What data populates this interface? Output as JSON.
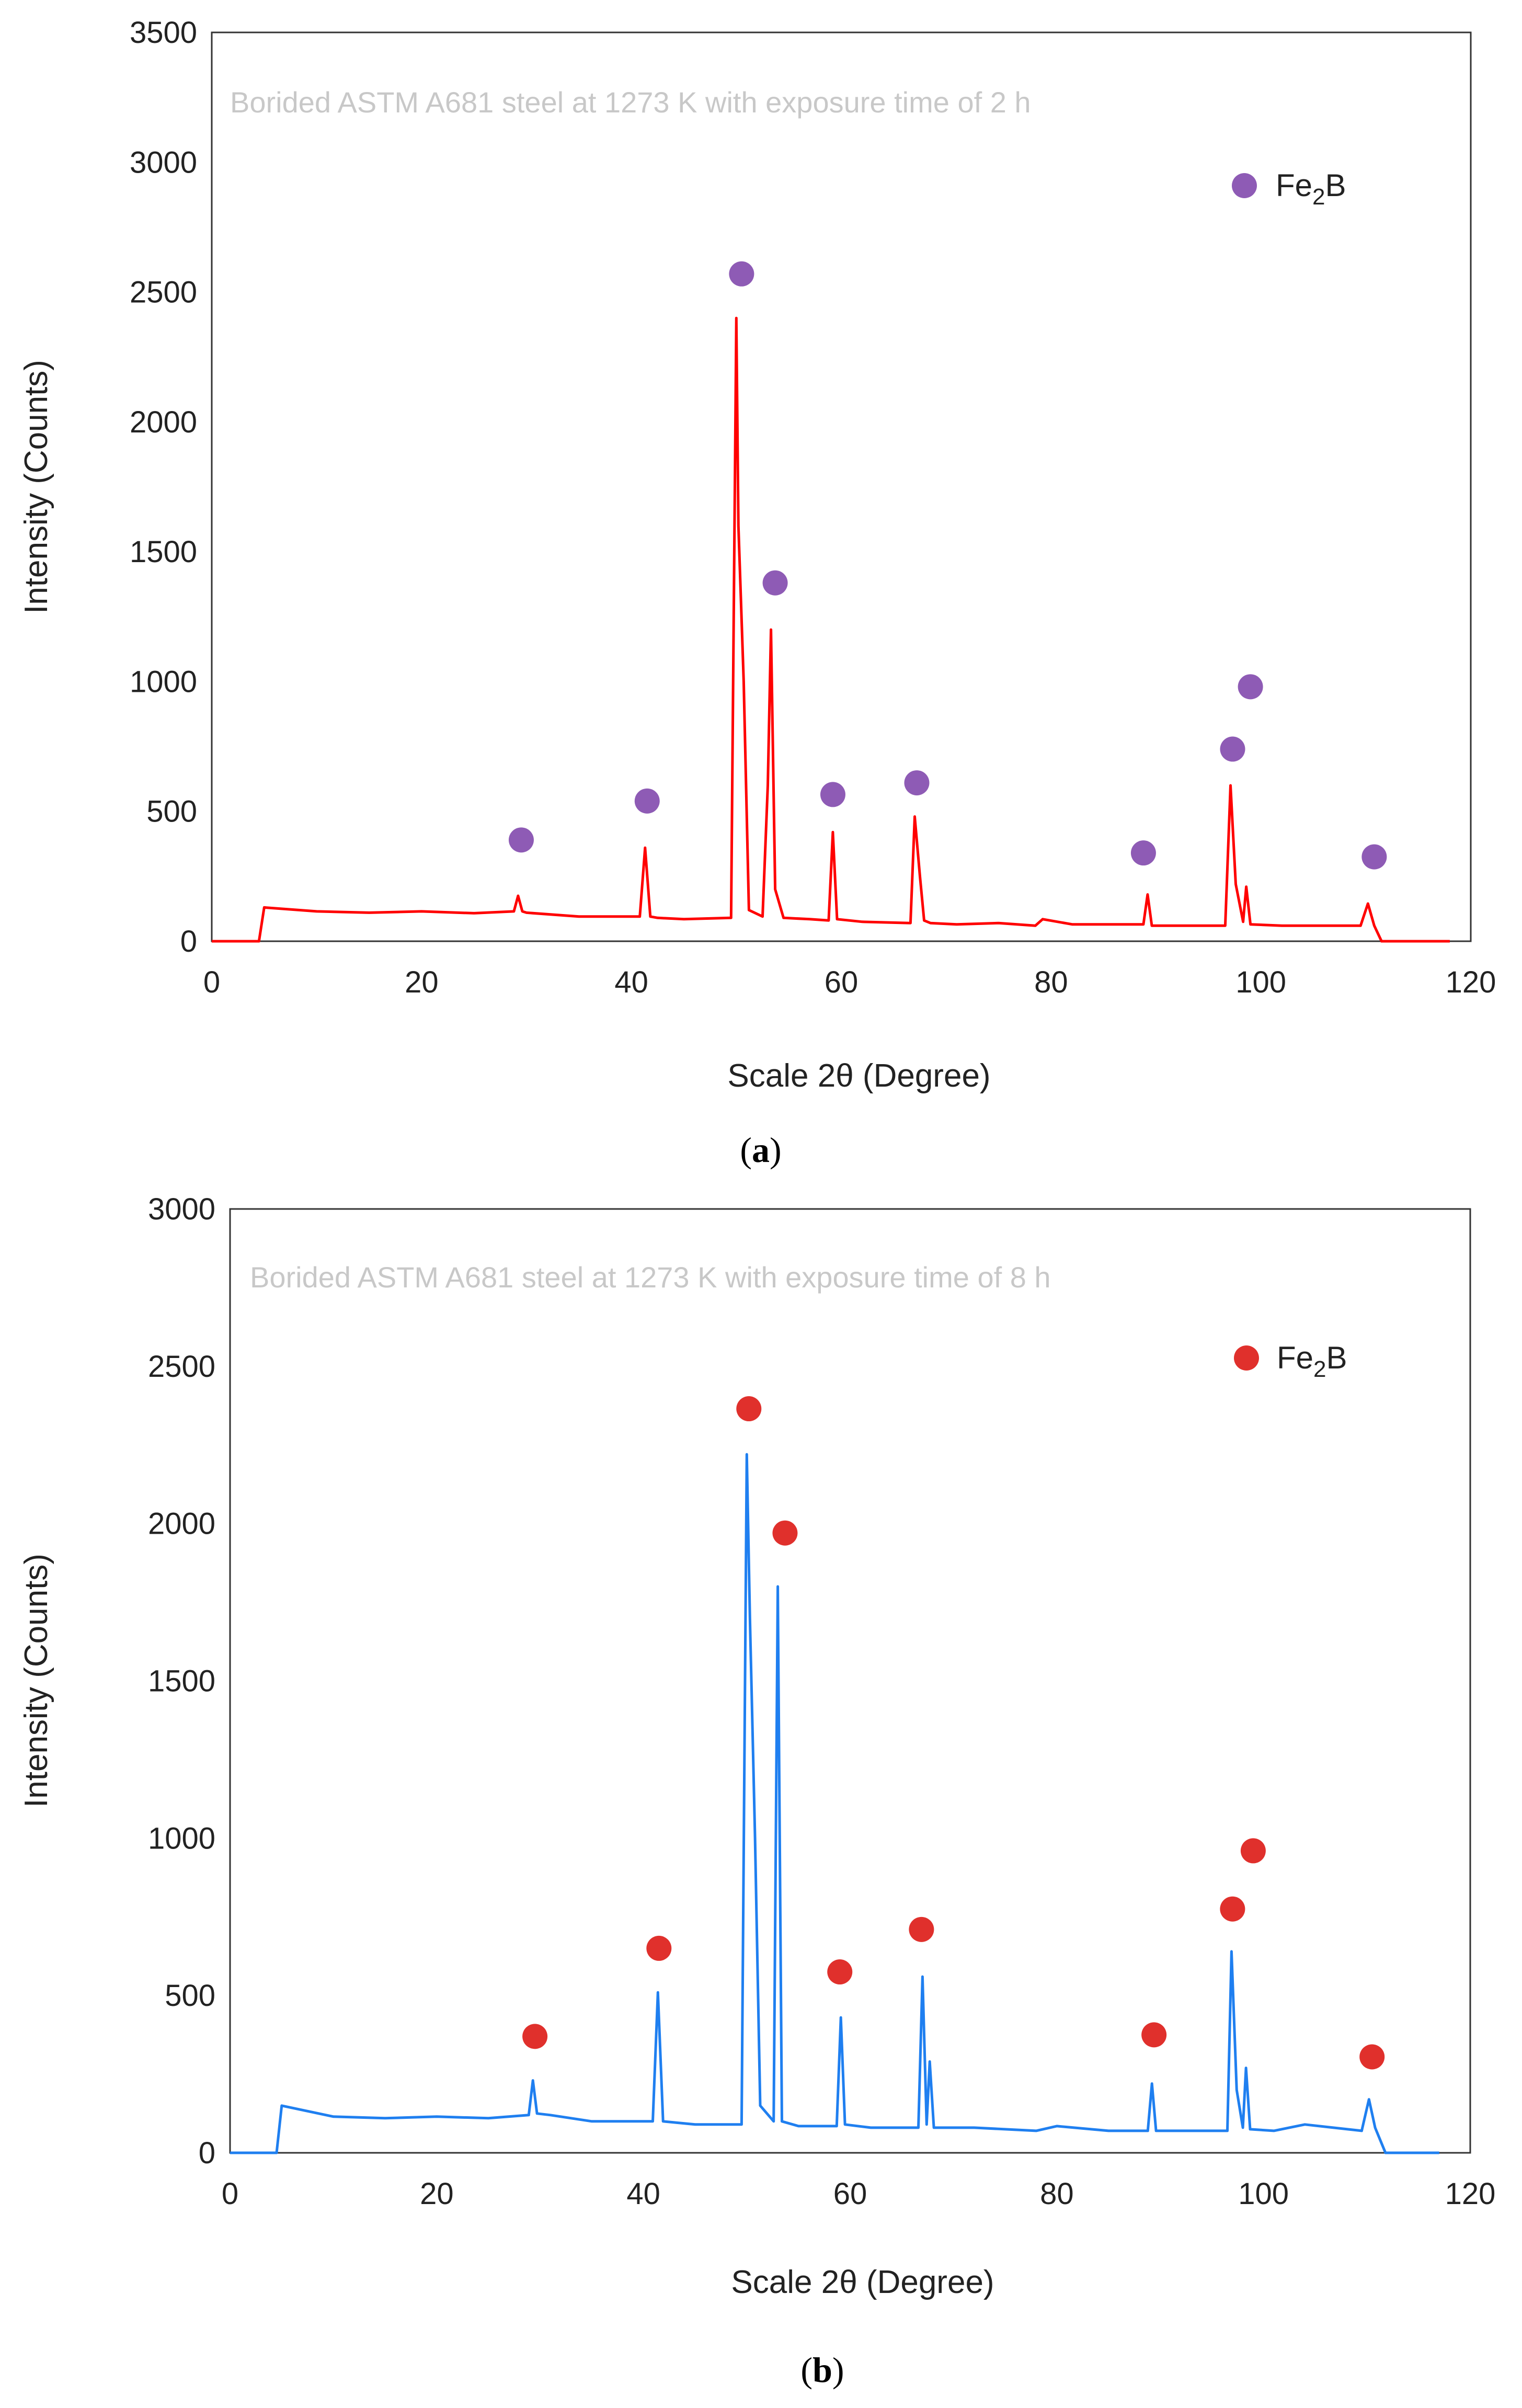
{
  "chart_data": [
    {
      "type": "line",
      "panel": "a",
      "caption_open": "(",
      "caption_letter": "a",
      "caption_close": ")",
      "title": "Borided ASTM A681 steel at 1273 K with exposure time of 2 h",
      "xlabel": "Scale 2θ (Degree)",
      "ylabel": "Intensity (Counts)",
      "xlim": [
        0,
        120
      ],
      "ylim": [
        0,
        3500
      ],
      "xticks": [
        0,
        20,
        40,
        60,
        80,
        100,
        120
      ],
      "yticks": [
        0,
        500,
        1000,
        1500,
        2000,
        2500,
        3000,
        3500
      ],
      "line_color": "#ff0000",
      "marker_color": "#8e5bb5",
      "legend": {
        "label_main": "Fe",
        "label_sub": "2",
        "label_tail": "B",
        "position": "top-right"
      },
      "series": [
        {
          "name": "XRD pattern",
          "x": [
            0,
            4.5,
            5,
            10,
            15,
            20,
            25,
            28.8,
            29.2,
            29.6,
            30,
            35,
            40.8,
            41.3,
            41.8,
            42.5,
            45,
            49.5,
            50.0,
            50.2,
            50.7,
            51.2,
            52.5,
            53.0,
            53.3,
            53.7,
            54.5,
            57,
            58.8,
            59.2,
            59.6,
            62,
            66.6,
            67.0,
            67.5,
            67.9,
            68.5,
            71,
            75,
            78.5,
            79.2,
            82,
            86,
            88.8,
            89.2,
            89.6,
            93,
            96.6,
            97.1,
            97.6,
            98.3,
            98.6,
            99.0,
            102,
            106,
            109.5,
            110.2,
            110.8,
            111.5,
            118
          ],
          "y": [
            0,
            0,
            130,
            115,
            110,
            115,
            108,
            115,
            175,
            115,
            110,
            95,
            95,
            360,
            95,
            90,
            85,
            90,
            2400,
            1600,
            1000,
            120,
            95,
            600,
            1200,
            200,
            90,
            85,
            80,
            420,
            85,
            75,
            70,
            480,
            250,
            80,
            70,
            65,
            70,
            60,
            85,
            65,
            65,
            65,
            180,
            60,
            60,
            60,
            600,
            220,
            75,
            210,
            65,
            60,
            60,
            60,
            145,
            60,
            0,
            0
          ]
        }
      ],
      "markers": [
        {
          "x": 29.5,
          "y": 390
        },
        {
          "x": 41.5,
          "y": 540
        },
        {
          "x": 50.5,
          "y": 2570
        },
        {
          "x": 53.7,
          "y": 1380
        },
        {
          "x": 59.2,
          "y": 565
        },
        {
          "x": 67.2,
          "y": 610
        },
        {
          "x": 88.8,
          "y": 340
        },
        {
          "x": 97.3,
          "y": 740
        },
        {
          "x": 99.0,
          "y": 980
        },
        {
          "x": 110.8,
          "y": 325
        }
      ]
    },
    {
      "type": "line",
      "panel": "b",
      "caption_open": "(",
      "caption_letter": "b",
      "caption_close": ")",
      "title": "Borided ASTM A681 steel at 1273 K with exposure time of 8 h",
      "xlabel": "Scale 2θ (Degree)",
      "ylabel": "Intensity (Counts)",
      "xlim": [
        0,
        120
      ],
      "ylim": [
        0,
        3000
      ],
      "xticks": [
        0,
        20,
        40,
        60,
        80,
        100,
        120
      ],
      "yticks": [
        0,
        500,
        1000,
        1500,
        2000,
        2500,
        3000
      ],
      "line_color": "#1f7ff0",
      "marker_color": "#e0302c",
      "legend": {
        "label_main": "Fe",
        "label_sub": "2",
        "label_tail": "B",
        "position": "top-right"
      },
      "series": [
        {
          "name": "XRD pattern",
          "x": [
            0,
            4.5,
            5,
            10,
            15,
            20,
            25,
            28.9,
            29.3,
            29.7,
            31,
            35,
            40.9,
            41.4,
            41.9,
            45,
            49.5,
            50.0,
            50.3,
            50.8,
            51.3,
            52.6,
            53.0,
            53.4,
            55,
            58.7,
            59.1,
            59.5,
            62,
            66.6,
            67.0,
            67.4,
            67.7,
            68.1,
            72,
            78,
            80,
            85,
            88.8,
            89.2,
            89.6,
            94,
            96.5,
            96.9,
            97.4,
            98.0,
            98.3,
            98.7,
            101,
            104,
            109.5,
            110.2,
            110.8,
            111.8,
            117
          ],
          "y": [
            0,
            0,
            150,
            115,
            110,
            115,
            110,
            120,
            230,
            125,
            120,
            100,
            100,
            510,
            100,
            90,
            90,
            2220,
            1700,
            1000,
            150,
            100,
            1800,
            100,
            85,
            85,
            430,
            90,
            80,
            80,
            560,
            90,
            290,
            80,
            80,
            70,
            85,
            70,
            70,
            220,
            70,
            70,
            70,
            640,
            200,
            80,
            270,
            75,
            70,
            90,
            70,
            170,
            80,
            0,
            0
          ]
        }
      ],
      "markers": [
        {
          "x": 29.5,
          "y": 370
        },
        {
          "x": 41.5,
          "y": 650
        },
        {
          "x": 50.2,
          "y": 2365
        },
        {
          "x": 53.7,
          "y": 1970
        },
        {
          "x": 59.0,
          "y": 575
        },
        {
          "x": 66.9,
          "y": 710
        },
        {
          "x": 89.4,
          "y": 375
        },
        {
          "x": 97.0,
          "y": 775
        },
        {
          "x": 99.0,
          "y": 960
        },
        {
          "x": 110.5,
          "y": 305
        }
      ]
    }
  ]
}
